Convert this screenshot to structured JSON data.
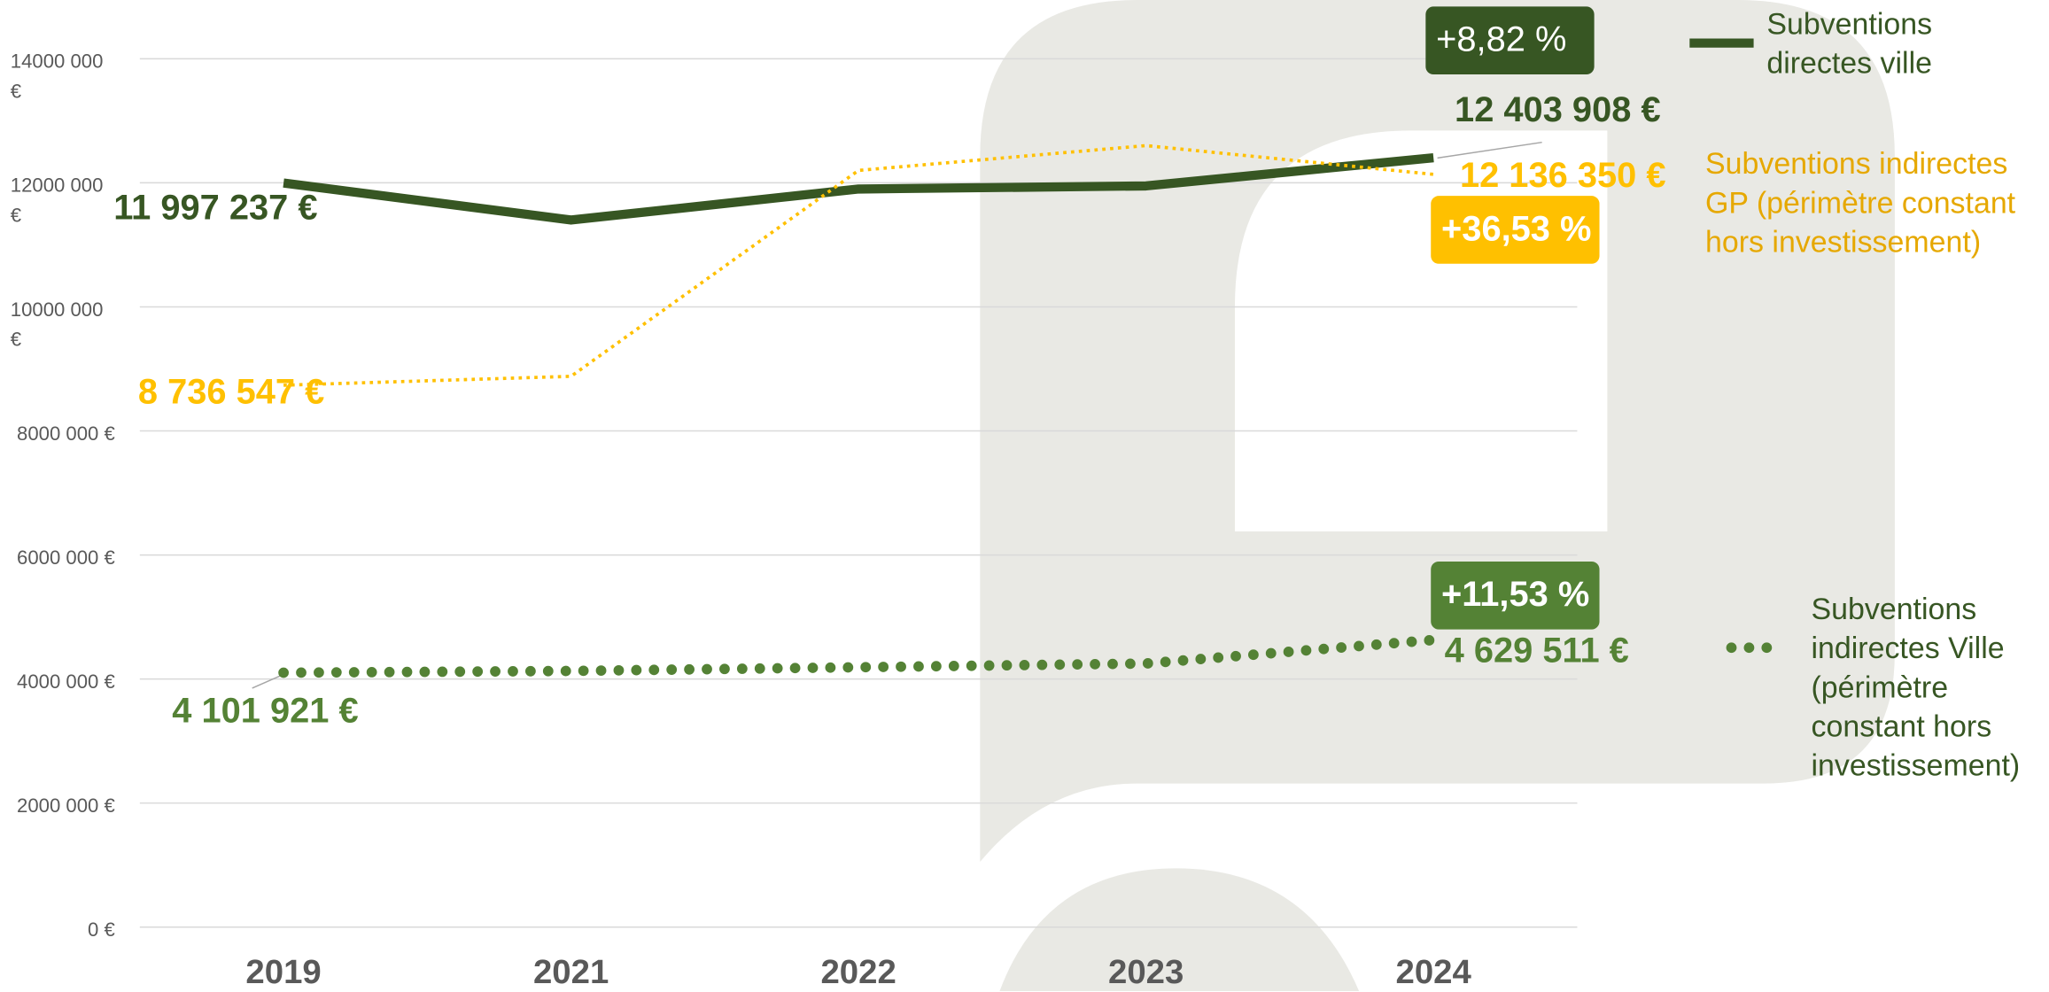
{
  "chart_data": {
    "type": "line",
    "categories": [
      "2019",
      "2021",
      "2022",
      "2023",
      "2024"
    ],
    "ylim": [
      0,
      14000000
    ],
    "yticks": [
      {
        "value": 0,
        "label": "0 €"
      },
      {
        "value": 2000000,
        "label": "2000 000 €"
      },
      {
        "value": 4000000,
        "label": "4000 000 €"
      },
      {
        "value": 6000000,
        "label": "6000 000 €"
      },
      {
        "value": 8000000,
        "label": "8000 000 €"
      },
      {
        "value": 10000000,
        "label": "10000 000 €"
      },
      {
        "value": 12000000,
        "label": "12000 000 €"
      },
      {
        "value": 14000000,
        "label": "14000 000 €"
      }
    ],
    "grid": true,
    "series": [
      {
        "name": "Subventions directes ville",
        "color": "#375623",
        "line_style": "solid",
        "values": [
          11997237,
          11400000,
          11900000,
          11950000,
          12403908
        ],
        "value_labels": [
          "11 997 237 €",
          null,
          null,
          null,
          "12 403 908 €"
        ],
        "change": "+8,82 %"
      },
      {
        "name": "Subventions indirectes GP (périmètre constant hors investissement)",
        "color": "#FFC000",
        "line_style": "dotted",
        "values": [
          8736547,
          8880000,
          12200000,
          12600000,
          12136350
        ],
        "value_labels": [
          "8 736 547 €",
          null,
          null,
          null,
          "12 136 350 €"
        ],
        "change": "+36,53 %"
      },
      {
        "name": "Subventions indirectes Ville (périmètre constant hors investissement)",
        "color": "#548235",
        "line_style": "dots",
        "values": [
          4101921,
          4130000,
          4190000,
          4250000,
          4629511
        ],
        "value_labels": [
          "4 101 921 €",
          null,
          null,
          null,
          "4 629 511 €"
        ],
        "change": "+11,53 %"
      }
    ]
  }
}
